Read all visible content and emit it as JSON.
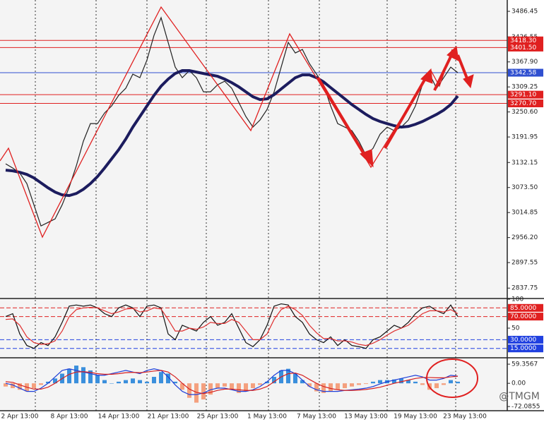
{
  "chart_data": [
    {
      "type": "line",
      "categories": [
        null,
        null,
        "2 Apr 13:00",
        null,
        null,
        null,
        null,
        null,
        null,
        "8 Apr 13:00",
        null,
        null,
        null,
        null,
        null,
        null,
        "14 Apr 13:00",
        null,
        null,
        null,
        null,
        null,
        null,
        "21 Apr 13:00",
        null,
        null,
        null,
        null,
        null,
        null,
        "25 Apr 13:00",
        null,
        null,
        null,
        null,
        null,
        null,
        "1 May 13:00",
        null,
        null,
        null,
        null,
        null,
        null,
        "7 May 13:00",
        null,
        null,
        null,
        null,
        null,
        null,
        "13 May 13:00",
        null,
        null,
        null,
        null,
        null,
        null,
        "19 May 13:00",
        null,
        null,
        null,
        null,
        null,
        null,
        "23 May 13:00"
      ],
      "series": [
        {
          "name": "Price",
          "color": "#222222",
          "values": [
            3129.0,
            3119.1,
            3107.5,
            3082.7,
            3033.0,
            2983.4,
            2991.7,
            2999.9,
            3033.0,
            3074.4,
            3124.1,
            3182.0,
            3223.3,
            3223.3,
            3248.2,
            3264.7,
            3289.5,
            3306.1,
            3339.2,
            3330.9,
            3372.3,
            3430.2,
            3471.6,
            3413.6,
            3355.7,
            3330.9,
            3347.5,
            3330.9,
            3297.8,
            3297.8,
            3314.4,
            3322.6,
            3306.1,
            3273.0,
            3239.9,
            3215.1,
            3231.6,
            3256.4,
            3297.8,
            3355.7,
            3413.6,
            3388.8,
            3397.1,
            3364.0,
            3339.2,
            3314.4,
            3264.7,
            3223.3,
            3215.1,
            3206.8,
            3182.0,
            3148.9,
            3165.4,
            3198.5,
            3215.1,
            3206.8,
            3215.1,
            3231.6,
            3264.7,
            3314.4,
            3339.2,
            3306.1,
            3330.9,
            3355.7,
            3342.6,
            null
          ]
        },
        {
          "name": "Moving Average",
          "color": "#1c1c5e",
          "values": [
            3114.2,
            3112.5,
            3109.2,
            3104.2,
            3096.0,
            3084.4,
            3072.8,
            3062.8,
            3056.2,
            3054.6,
            3059.5,
            3069.4,
            3082.7,
            3099.3,
            3119.1,
            3140.6,
            3162.2,
            3187.0,
            3215.1,
            3239.9,
            3264.7,
            3289.5,
            3311.0,
            3327.6,
            3340.8,
            3347.5,
            3347.5,
            3344.1,
            3340.8,
            3337.5,
            3334.2,
            3327.6,
            3319.3,
            3309.4,
            3297.8,
            3286.2,
            3279.6,
            3281.3,
            3291.2,
            3304.4,
            3317.7,
            3330.9,
            3337.5,
            3337.5,
            3330.9,
            3321.0,
            3307.7,
            3294.5,
            3281.3,
            3268.0,
            3256.4,
            3244.9,
            3234.9,
            3228.3,
            3223.3,
            3218.4,
            3215.1,
            3216.7,
            3221.7,
            3228.3,
            3236.6,
            3244.9,
            3254.8,
            3268.0,
            3287.9,
            null
          ]
        }
      ],
      "ylim": [
        2815,
        3513
      ],
      "yticks": [
        3486.45,
        3426.55,
        {
          "value": 3367.9,
          "label": "3367.90"
        },
        3309.25,
        {
          "value": 3250.6,
          "label": "3250.60"
        },
        3191.95,
        3132.15,
        {
          "value": 3073.5,
          "label": "3073.50"
        },
        3014.85,
        {
          "value": 2956.2,
          "label": "2956.20"
        },
        2897.55,
        2837.75
      ],
      "levels": [
        {
          "value": 3418.3,
          "label": "3418.30",
          "color": "#e02020"
        },
        {
          "value": 3401.5,
          "label": "3401.50",
          "color": "#e02020"
        },
        {
          "value": 3342.58,
          "label": "3342.58",
          "color": "#3050d0"
        },
        {
          "value": 3291.1,
          "label": "3291.10",
          "color": "#e02020"
        },
        {
          "value": 3270.7,
          "label": "3270.70",
          "color": "#e02020"
        }
      ]
    },
    {
      "type": "line",
      "series": [
        {
          "name": "Main",
          "color": "#111111",
          "values": [
            70,
            75,
            40,
            20,
            15,
            25,
            20,
            35,
            60,
            88,
            90,
            88,
            90,
            85,
            75,
            70,
            85,
            90,
            85,
            70,
            88,
            90,
            85,
            40,
            30,
            55,
            50,
            45,
            60,
            70,
            55,
            60,
            75,
            50,
            25,
            18,
            30,
            55,
            88,
            92,
            90,
            70,
            60,
            40,
            30,
            25,
            35,
            20,
            30,
            20,
            18,
            15,
            30,
            35,
            45,
            55,
            50,
            60,
            75,
            85,
            88,
            80,
            75,
            90,
            70,
            null
          ]
        },
        {
          "name": "Signal",
          "color": "#e03030",
          "values": [
            65,
            66,
            55,
            35,
            25,
            22,
            23,
            28,
            45,
            70,
            82,
            85,
            86,
            85,
            80,
            75,
            78,
            83,
            84,
            78,
            80,
            85,
            83,
            65,
            45,
            45,
            50,
            48,
            52,
            60,
            58,
            58,
            65,
            60,
            45,
            30,
            30,
            40,
            65,
            82,
            88,
            82,
            72,
            55,
            42,
            32,
            32,
            28,
            28,
            26,
            22,
            20,
            24,
            30,
            38,
            45,
            50,
            55,
            65,
            75,
            80,
            80,
            78,
            82,
            75,
            null
          ]
        }
      ],
      "ylim": [
        0,
        100
      ],
      "yticks": [
        100,
        50
      ],
      "levels": [
        {
          "value": 85,
          "label": "85.0000",
          "color": "#e02020"
        },
        {
          "value": 70,
          "label": "70.0000",
          "color": "#e02020"
        },
        {
          "value": 30,
          "label": "30.0000",
          "color": "#2040e0"
        },
        {
          "value": 15,
          "label": "15.0000",
          "color": "#2040e0"
        }
      ]
    },
    {
      "type": "bar",
      "values": [
        -10,
        -15,
        -20,
        -25,
        -15,
        -5,
        5,
        15,
        30,
        45,
        55,
        50,
        40,
        25,
        10,
        0,
        5,
        10,
        15,
        10,
        5,
        20,
        35,
        30,
        5,
        -20,
        -45,
        -60,
        -50,
        -35,
        -15,
        -10,
        -20,
        -30,
        -25,
        -15,
        -5,
        5,
        20,
        40,
        45,
        30,
        10,
        -10,
        -25,
        -30,
        -25,
        -20,
        -15,
        -10,
        -5,
        -2,
        5,
        10,
        10,
        12,
        15,
        10,
        5,
        -5,
        -20,
        -15,
        -5,
        10,
        5,
        null
      ],
      "colors": {
        "positive": "#3a8fdc",
        "negative": "#f4a07e"
      },
      "series": [
        {
          "name": "MACD",
          "color": "#1f3fd8",
          "values": [
            0,
            -5,
            -15,
            -25,
            -25,
            -15,
            0,
            20,
            40,
            45,
            40,
            35,
            30,
            25,
            25,
            30,
            35,
            40,
            35,
            30,
            40,
            45,
            40,
            20,
            -5,
            -25,
            -35,
            -35,
            -30,
            -20,
            -15,
            -15,
            -20,
            -25,
            -25,
            -20,
            -10,
            5,
            25,
            40,
            40,
            30,
            10,
            -10,
            -20,
            -25,
            -25,
            -25,
            -22,
            -20,
            -18,
            -15,
            -10,
            -2,
            5,
            10,
            15,
            20,
            25,
            20,
            10,
            10,
            15,
            25,
            22,
            null
          ]
        },
        {
          "name": "Signal",
          "color": "#d62020",
          "values": [
            5,
            3,
            -5,
            -12,
            -18,
            -18,
            -12,
            0,
            15,
            28,
            35,
            36,
            34,
            30,
            28,
            28,
            30,
            33,
            34,
            33,
            35,
            38,
            40,
            35,
            20,
            0,
            -18,
            -28,
            -32,
            -28,
            -22,
            -18,
            -18,
            -20,
            -22,
            -22,
            -18,
            -10,
            5,
            20,
            30,
            32,
            25,
            12,
            0,
            -10,
            -16,
            -20,
            -22,
            -22,
            -21,
            -19,
            -16,
            -12,
            -6,
            0,
            5,
            10,
            15,
            18,
            18,
            17,
            17,
            20,
            22,
            null
          ]
        }
      ],
      "ylim": [
        -85,
        77
      ],
      "yticks": [
        59.3567,
        {
          "value": 0,
          "label": "0.00"
        },
        -72.0855
      ]
    }
  ],
  "watermark": "@TMGM"
}
